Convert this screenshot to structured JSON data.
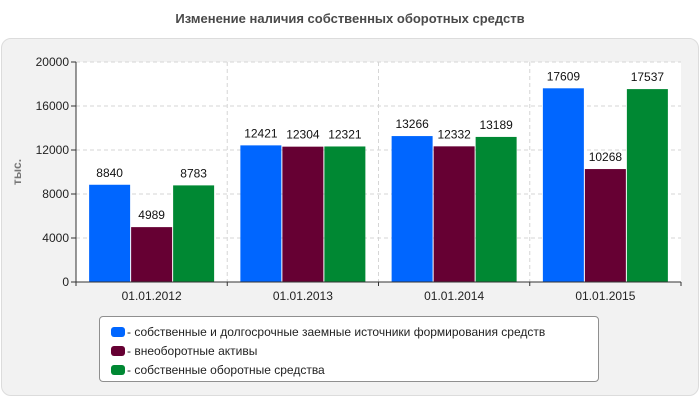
{
  "chart_data": {
    "type": "bar",
    "title": "Изменение наличия собственных оборотных средств",
    "ylabel": "тыс.",
    "xlabel": "",
    "categories": [
      "01.01.2012",
      "01.01.2013",
      "01.01.2014",
      "01.01.2015"
    ],
    "yticks": [
      "0",
      "4000",
      "8000",
      "12000",
      "16000",
      "20000"
    ],
    "ylim": [
      0,
      20000
    ],
    "grid": true,
    "legend_position": "bottom",
    "series": [
      {
        "name": "- собственные и долгосрочные заемные источники формирования средств",
        "color": "#0066ff",
        "values": [
          8840,
          12421,
          13266,
          17609
        ],
        "labels": [
          "8840",
          "12421",
          "13266",
          "17609"
        ]
      },
      {
        "name": "- внеоборотные активы",
        "color": "#660033",
        "values": [
          4989,
          12304,
          12332,
          10268
        ],
        "labels": [
          "4989",
          "12304",
          "12332",
          "10268"
        ]
      },
      {
        "name": "- собственные оборотные средства",
        "color": "#008833",
        "values": [
          8783,
          12321,
          13189,
          17537
        ],
        "labels": [
          "8783",
          "12321",
          "13189",
          "17537"
        ]
      }
    ]
  }
}
